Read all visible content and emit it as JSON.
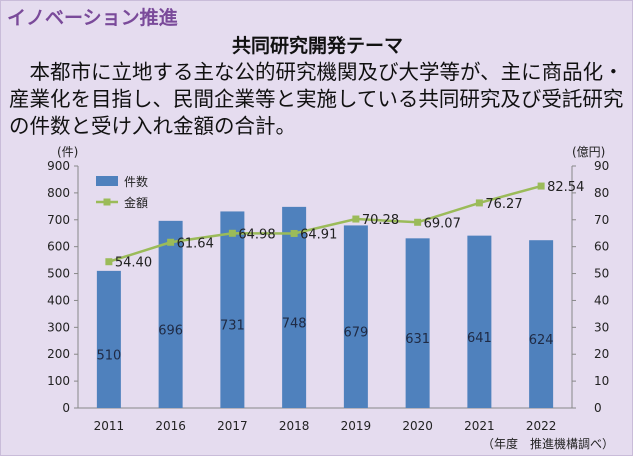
{
  "section_label": "イノベーション推進",
  "title": "共同研究開発テーマ",
  "description": "本都市に立地する主な公的研究機関及び大学等が、主に商品化・産業化を目指し、民間企業等と実施している共同研究及び受託研究の件数と受け入れ金額の合計。",
  "source_note": "（年度　推進機構調べ）",
  "colors": {
    "bar": "#4f81bd",
    "line": "#9bbb59",
    "panel": "#e5dcef",
    "accent": "#7a4a9a"
  },
  "chart_data": {
    "type": "bar",
    "categories": [
      "2011",
      "2016",
      "2017",
      "2018",
      "2019",
      "2020",
      "2021",
      "2022"
    ],
    "series": [
      {
        "name": "件数",
        "type": "bar",
        "axis": "left",
        "values": [
          510,
          696,
          731,
          748,
          679,
          631,
          641,
          624
        ]
      },
      {
        "name": "金額",
        "type": "line",
        "axis": "right",
        "values": [
          54.4,
          61.64,
          64.98,
          64.91,
          70.28,
          69.07,
          76.27,
          82.54
        ]
      }
    ],
    "data_labels": {
      "bar": [
        "510",
        "696",
        "731",
        "748",
        "679",
        "631",
        "641",
        "624"
      ],
      "line": [
        "54.40",
        "61.64",
        "64.98",
        "64.91",
        "70.28",
        "69.07",
        "76.27",
        "82.54"
      ]
    },
    "y_left": {
      "unit": "(件)",
      "ylim": [
        0,
        900
      ],
      "ticks": [
        0,
        100,
        200,
        300,
        400,
        500,
        600,
        700,
        800,
        900
      ]
    },
    "y_right": {
      "unit": "(億円)",
      "ylim": [
        0,
        90
      ],
      "ticks": [
        0,
        10,
        20,
        30,
        40,
        50,
        60,
        70,
        80,
        90
      ]
    },
    "legend": {
      "position": "top-left",
      "items": [
        "件数",
        "金額"
      ]
    },
    "grid": false
  }
}
